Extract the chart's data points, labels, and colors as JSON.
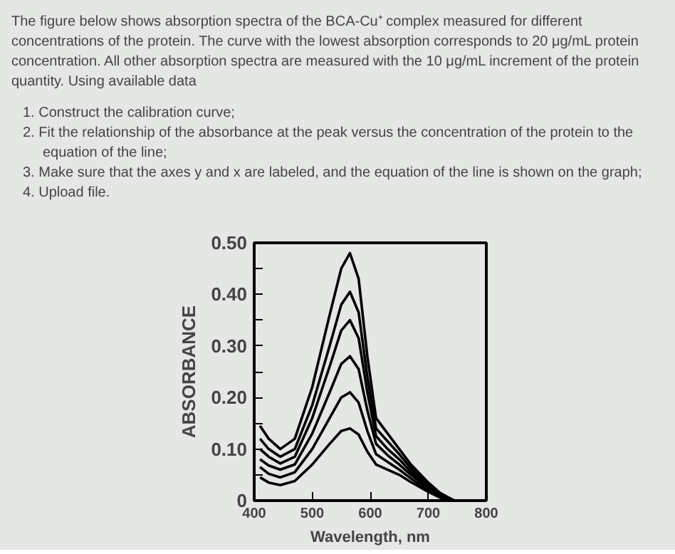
{
  "chart_data": {
    "type": "line",
    "title": "The figure below shows absorption spectra of the BCA-Cu⁺ complex measured for different concentrations of the protein. The curve with the lowest absorption corresponds to 20 μg/mL protein concentration. All other absorption spectra are measured with the 10 μg/mL increment of the protein quantity.  Using available data",
    "annotations": [
      "1. Construct the calibration curve;",
      "2. Fit the relationship of the absorbance at the peak versus the concentration of the protein to the equation of the line;",
      "3. Make sure that the axes y and x are labeled, and the equation of the line is shown on the graph;",
      "4. Upload file."
    ],
    "xlabel": "Wavelength, nm",
    "ylabel": "ABSORBANCE",
    "x": [
      410,
      425,
      445,
      470,
      500,
      530,
      550,
      565,
      580,
      595,
      610,
      630,
      650,
      670,
      700,
      720,
      745,
      800
    ],
    "series": [
      {
        "color": "#000000",
        "values": [
          0.145,
          0.12,
          0.1,
          0.12,
          0.22,
          0.36,
          0.45,
          0.48,
          0.43,
          0.28,
          0.16,
          0.13,
          0.1,
          0.07,
          0.035,
          0.015,
          0,
          0
        ]
      },
      {
        "color": "#000000",
        "values": [
          0.12,
          0.1,
          0.085,
          0.1,
          0.185,
          0.3,
          0.38,
          0.405,
          0.365,
          0.24,
          0.14,
          0.115,
          0.09,
          0.063,
          0.03,
          0.013,
          0,
          0
        ]
      },
      {
        "color": "#000000",
        "values": [
          0.1,
          0.085,
          0.072,
          0.085,
          0.16,
          0.26,
          0.33,
          0.35,
          0.315,
          0.21,
          0.125,
          0.1,
          0.08,
          0.056,
          0.027,
          0.011,
          0,
          0
        ]
      },
      {
        "color": "#000000",
        "values": [
          0.08,
          0.068,
          0.06,
          0.07,
          0.13,
          0.21,
          0.265,
          0.28,
          0.255,
          0.175,
          0.11,
          0.088,
          0.07,
          0.05,
          0.024,
          0.01,
          0,
          0
        ]
      },
      {
        "color": "#000000",
        "values": [
          0.065,
          0.052,
          0.045,
          0.055,
          0.1,
          0.16,
          0.2,
          0.21,
          0.19,
          0.135,
          0.09,
          0.075,
          0.06,
          0.043,
          0.02,
          0.008,
          0,
          0
        ]
      },
      {
        "color": "#000000",
        "values": [
          0.045,
          0.035,
          0.03,
          0.038,
          0.07,
          0.11,
          0.135,
          0.14,
          0.128,
          0.095,
          0.07,
          0.06,
          0.05,
          0.036,
          0.017,
          0.006,
          0,
          0
        ]
      }
    ],
    "xlim": [
      400,
      800
    ],
    "ylim": [
      0,
      0.5
    ],
    "xticks": [
      400,
      500,
      600,
      700,
      800
    ],
    "yticks": [
      0,
      {
        "value": 0.05,
        "label": null
      },
      {
        "value": 0.1,
        "label": "0.10"
      },
      {
        "value": 0.15,
        "label": null
      },
      {
        "value": 0.2,
        "label": "0.20"
      },
      {
        "value": 0.25,
        "label": null
      },
      {
        "value": 0.3,
        "label": "0.30"
      },
      {
        "value": 0.35,
        "label": null
      },
      {
        "value": 0.4,
        "label": "0.40"
      },
      {
        "value": 0.45,
        "label": null
      },
      {
        "value": 0.5,
        "label": "0.50"
      }
    ],
    "line_style": "solid"
  }
}
